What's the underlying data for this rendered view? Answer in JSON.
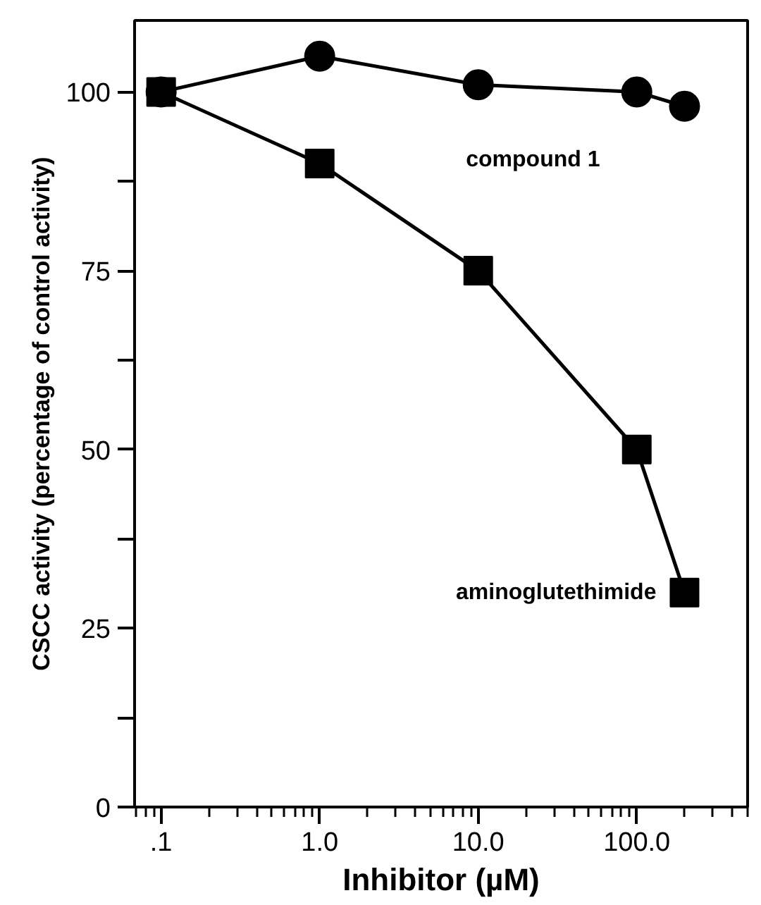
{
  "chart_data": {
    "type": "line",
    "xlabel": "Inhibitor (µM)",
    "ylabel": "CSCC activity (percentage of control activity)",
    "log": "x",
    "line_style": "solid",
    "xlim": [
      0.068,
      500
    ],
    "ylim": [
      0,
      110
    ],
    "xticks": [
      {
        "value": 0.1,
        "label": ".1"
      },
      {
        "value": 1,
        "label": "1.0"
      },
      {
        "value": 10,
        "label": "10.0"
      },
      {
        "value": 100,
        "label": "100.0"
      }
    ],
    "yticks": [
      0,
      {
        "value": 12.5,
        "label": null
      },
      25,
      {
        "value": 37.5,
        "label": null
      },
      50,
      {
        "value": 62.5,
        "label": null
      },
      75,
      {
        "value": 87.5,
        "label": null
      },
      100
    ],
    "x": [
      0.1,
      1,
      10,
      100,
      200
    ],
    "series": [
      {
        "name": "compound 1",
        "color": "#000000",
        "marker": "circle",
        "values": [
          100,
          105,
          101,
          100,
          98
        ]
      },
      {
        "name": "aminoglutethimide",
        "color": "#000000",
        "marker": "square",
        "values": [
          100,
          90,
          75,
          50,
          30
        ]
      }
    ]
  }
}
